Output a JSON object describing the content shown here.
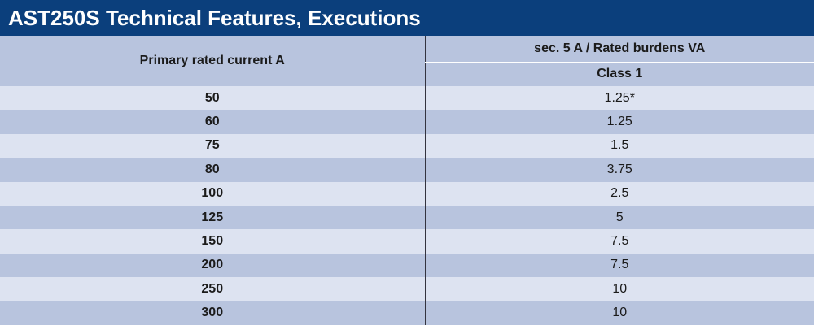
{
  "title": "AST250S Technical Features, Executions",
  "header": {
    "primary": "Primary rated current A",
    "secondary": "sec. 5 A / Rated burdens VA",
    "class": "Class 1"
  },
  "rows": [
    {
      "primary": "50",
      "class1": "1.25*"
    },
    {
      "primary": "60",
      "class1": "1.25"
    },
    {
      "primary": "75",
      "class1": "1.5"
    },
    {
      "primary": "80",
      "class1": "3.75"
    },
    {
      "primary": "100",
      "class1": "2.5"
    },
    {
      "primary": "125",
      "class1": "5"
    },
    {
      "primary": "150",
      "class1": "7.5"
    },
    {
      "primary": "200",
      "class1": "7.5"
    },
    {
      "primary": "250",
      "class1": "10"
    },
    {
      "primary": "300",
      "class1": "10"
    }
  ],
  "colors": {
    "title_bg": "#0b3f7c",
    "row_light": "#dde3f1",
    "row_dark": "#b8c4de"
  }
}
